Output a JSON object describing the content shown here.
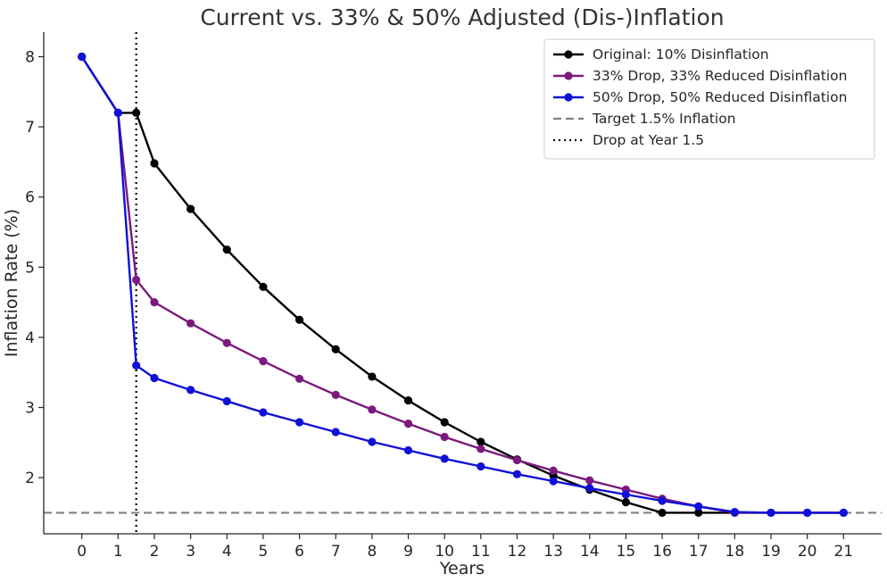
{
  "chart_data": {
    "type": "line",
    "title": "Current vs. 33% & 50% Adjusted (Dis-)Inflation",
    "xlabel": "Years",
    "ylabel": "Inflation Rate (%)",
    "xlim": [
      -1.05,
      22.05
    ],
    "ylim": [
      1.2,
      8.35
    ],
    "xticks": [
      0,
      1,
      2,
      3,
      4,
      5,
      6,
      7,
      8,
      9,
      10,
      11,
      12,
      13,
      14,
      15,
      16,
      17,
      18,
      19,
      20,
      21
    ],
    "yticks": [
      2,
      3,
      4,
      5,
      6,
      7,
      8
    ],
    "grid": false,
    "legend_position": "upper-right",
    "series": [
      {
        "name": "Original: 10% Disinflation",
        "color": "#000000",
        "marker": "circle",
        "x": [
          0,
          1,
          1.5,
          2,
          3,
          4,
          5,
          6,
          7,
          8,
          9,
          10,
          11,
          12,
          13,
          14,
          15,
          16,
          17,
          18,
          19,
          20,
          21
        ],
        "y": [
          8.0,
          7.2,
          7.2,
          6.48,
          5.83,
          5.25,
          4.72,
          4.25,
          3.83,
          3.44,
          3.1,
          2.79,
          2.51,
          2.26,
          2.03,
          1.83,
          1.65,
          1.5,
          1.5,
          1.5,
          1.5,
          1.5,
          1.5
        ]
      },
      {
        "name": "33% Drop, 33% Reduced Disinflation",
        "color": "#7b1a7e",
        "marker": "circle",
        "x": [
          0,
          1,
          1.5,
          2,
          3,
          4,
          5,
          6,
          7,
          8,
          9,
          10,
          11,
          12,
          13,
          14,
          15,
          16,
          17,
          18,
          19,
          20,
          21
        ],
        "y": [
          8.0,
          7.2,
          4.82,
          4.5,
          4.2,
          3.92,
          3.66,
          3.41,
          3.18,
          2.97,
          2.77,
          2.58,
          2.41,
          2.25,
          2.1,
          1.96,
          1.83,
          1.7,
          1.59,
          1.5,
          1.5,
          1.5,
          1.5
        ]
      },
      {
        "name": "50% Drop, 50% Reduced Disinflation",
        "color": "#1010d8",
        "marker": "circle",
        "x": [
          0,
          1,
          1.5,
          2,
          3,
          4,
          5,
          6,
          7,
          8,
          9,
          10,
          11,
          12,
          13,
          14,
          15,
          16,
          17,
          18,
          19,
          20,
          21
        ],
        "y": [
          8.0,
          7.2,
          3.6,
          3.42,
          3.25,
          3.09,
          2.93,
          2.79,
          2.65,
          2.51,
          2.39,
          2.27,
          2.16,
          2.05,
          1.95,
          1.85,
          1.76,
          1.67,
          1.59,
          1.51,
          1.5,
          1.5,
          1.5
        ]
      }
    ],
    "reference_lines": [
      {
        "name": "Target 1.5% Inflation",
        "orientation": "horizontal",
        "value": 1.5,
        "color": "#808080",
        "style": "dashed"
      },
      {
        "name": "Drop at Year 1.5",
        "orientation": "vertical",
        "value": 1.5,
        "color": "#000000",
        "style": "dotted"
      }
    ]
  }
}
